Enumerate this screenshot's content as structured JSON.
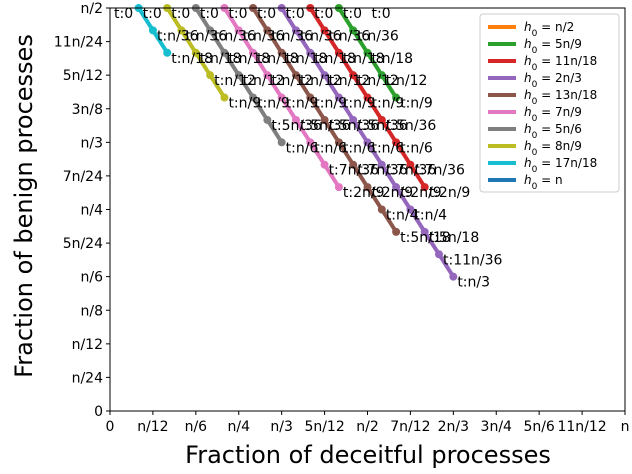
{
  "chart_data": {
    "type": "line",
    "xlabel": "Fraction of deceitful processes",
    "ylabel": "Fraction of benign processes",
    "xlim": [
      0,
      1
    ],
    "ylim": [
      0,
      0.5
    ],
    "xticks": [
      {
        "v": 0,
        "label": "0"
      },
      {
        "v": 0.0833,
        "label": "n/12"
      },
      {
        "v": 0.1667,
        "label": "n/6"
      },
      {
        "v": 0.25,
        "label": "n/4"
      },
      {
        "v": 0.3333,
        "label": "n/3"
      },
      {
        "v": 0.4167,
        "label": "5n/12"
      },
      {
        "v": 0.5,
        "label": "n/2"
      },
      {
        "v": 0.5833,
        "label": "7n/12"
      },
      {
        "v": 0.6667,
        "label": "2n/3"
      },
      {
        "v": 0.75,
        "label": "3n/4"
      },
      {
        "v": 0.8333,
        "label": "5n/6"
      },
      {
        "v": 0.9167,
        "label": "11n/12"
      },
      {
        "v": 1,
        "label": "n"
      }
    ],
    "yticks": [
      {
        "v": 0,
        "label": "0"
      },
      {
        "v": 0.0417,
        "label": "n/24"
      },
      {
        "v": 0.0833,
        "label": "n/12"
      },
      {
        "v": 0.125,
        "label": "n/8"
      },
      {
        "v": 0.1667,
        "label": "n/6"
      },
      {
        "v": 0.2083,
        "label": "5n/24"
      },
      {
        "v": 0.25,
        "label": "n/4"
      },
      {
        "v": 0.2917,
        "label": "7n/24"
      },
      {
        "v": 0.3333,
        "label": "n/3"
      },
      {
        "v": 0.375,
        "label": "3n/8"
      },
      {
        "v": 0.4167,
        "label": "5n/12"
      },
      {
        "v": 0.4583,
        "label": "11n/24"
      },
      {
        "v": 0.5,
        "label": "n/2"
      }
    ],
    "legend_position": "top-right",
    "series": [
      {
        "name": "h0 = n/2",
        "legend_suffix": "n/2",
        "h0": 0.5,
        "color": "#ff7f0e",
        "t_labels": [
          "t:0"
        ]
      },
      {
        "name": "h0 = 5n/9",
        "legend_suffix": "5n/9",
        "h0": 0.5556,
        "color": "#2ca02c",
        "t_labels": [
          "t:0",
          "t:n/36",
          "t:n/18",
          "t:n/12",
          "t:n/9"
        ]
      },
      {
        "name": "h0 = 11n/18",
        "legend_suffix": "11n/18",
        "h0": 0.6111,
        "color": "#d62728",
        "t_labels": [
          "t:0",
          "t:n/36",
          "t:n/18",
          "t:n/12",
          "t:n/9",
          "t:5n/36",
          "t:n/6",
          "t:7n/36",
          "t:2n/9"
        ]
      },
      {
        "name": "h0 = 2n/3",
        "legend_suffix": "2n/3",
        "h0": 0.6667,
        "color": "#9467bd",
        "t_labels": [
          "t:0",
          "t:n/36",
          "t:n/18",
          "t:n/12",
          "t:n/9",
          "t:5n/36",
          "t:n/6",
          "t:7n/36",
          "t:2n/9",
          "t:n/4",
          "t:5n/18",
          "t:11n/36",
          "t:n/3"
        ]
      },
      {
        "name": "h0 = 13n/18",
        "legend_suffix": "13n/18",
        "h0": 0.7222,
        "color": "#8c564b",
        "t_labels": [
          "t:0",
          "t:n/36",
          "t:n/18",
          "t:n/12",
          "t:n/9",
          "t:5n/36",
          "t:n/6",
          "t:7n/36",
          "t:2n/9",
          "t:n/4",
          "t:5n/18"
        ]
      },
      {
        "name": "h0 = 7n/9",
        "legend_suffix": "7n/9",
        "h0": 0.7778,
        "color": "#e377c2",
        "t_labels": [
          "t:0",
          "t:n/36",
          "t:n/18",
          "t:n/12",
          "t:n/9",
          "t:5n/36",
          "t:n/6",
          "t:7n/36",
          "t:2n/9"
        ]
      },
      {
        "name": "h0 = 5n/6",
        "legend_suffix": "5n/6",
        "h0": 0.8333,
        "color": "#7f7f7f",
        "t_labels": [
          "t:0",
          "t:n/36",
          "t:n/18",
          "t:n/12",
          "t:n/9",
          "t:5n/36",
          "t:n/6"
        ]
      },
      {
        "name": "h0 = 8n/9",
        "legend_suffix": "8n/9",
        "h0": 0.8889,
        "color": "#bcbd22",
        "t_labels": [
          "t:0",
          "t:n/36",
          "t:n/18",
          "t:n/12",
          "t:n/9"
        ]
      },
      {
        "name": "h0 = 17n/18",
        "legend_suffix": "17n/18",
        "h0": 0.9444,
        "color": "#17becf",
        "t_labels": [
          "t:0",
          "t:n/36",
          "t:n/18"
        ]
      },
      {
        "name": "h0 = n",
        "legend_suffix": "n",
        "h0": 1.0,
        "color": "#1f77b4",
        "t_labels": [
          "t:0"
        ]
      }
    ]
  }
}
